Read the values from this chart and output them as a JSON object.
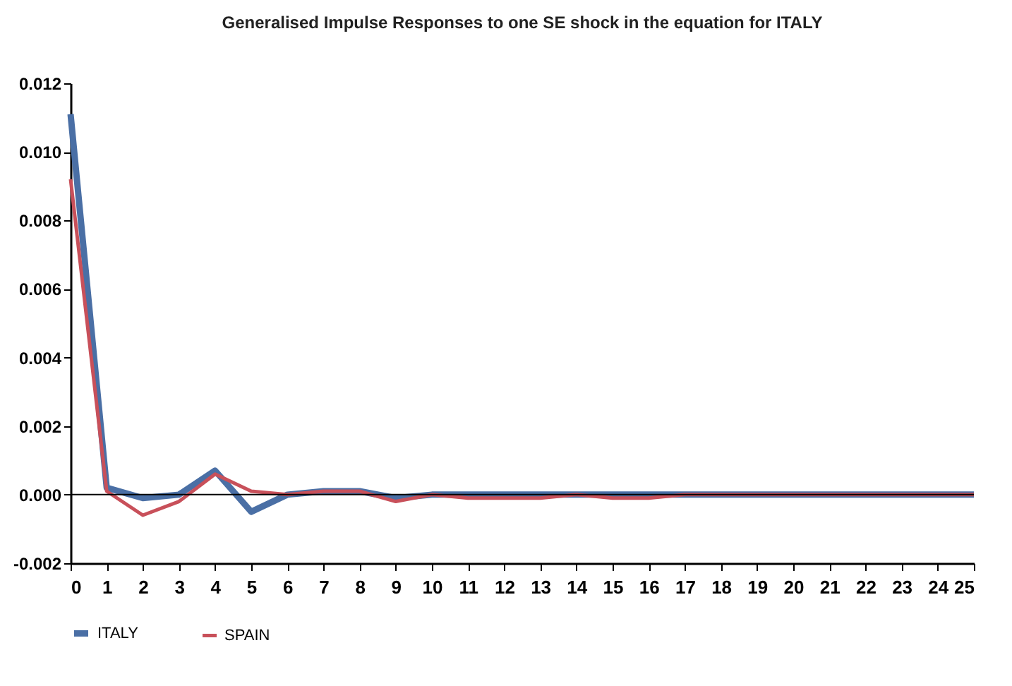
{
  "chart_data": {
    "type": "line",
    "title": "Generalised Impulse Responses to one SE shock in the equation for ITALY",
    "x": [
      0,
      1,
      2,
      3,
      4,
      5,
      6,
      7,
      8,
      9,
      10,
      11,
      12,
      13,
      14,
      15,
      16,
      17,
      18,
      19,
      20,
      21,
      22,
      23,
      24,
      25
    ],
    "series": [
      {
        "name": "ITALY",
        "color": "#4a6fa5",
        "values": [
          0.0111,
          0.0002,
          -0.0001,
          0.0,
          0.0007,
          -0.0005,
          0.0,
          0.0001,
          0.0001,
          -0.0001,
          0.0,
          0.0,
          0.0,
          0.0,
          0.0,
          0.0,
          0.0,
          0.0,
          0.0,
          0.0,
          0.0,
          0.0,
          0.0,
          0.0,
          0.0,
          0.0
        ]
      },
      {
        "name": "SPAIN",
        "color": "#c8505a",
        "values": [
          0.0092,
          0.0001,
          -0.0006,
          -0.0002,
          0.0006,
          0.0001,
          0.0,
          0.0001,
          0.0001,
          -0.0002,
          0.0,
          -0.0001,
          -0.0001,
          -0.0001,
          0.0,
          -0.0001,
          -0.0001,
          0.0,
          0.0,
          0.0,
          0.0,
          0.0,
          0.0,
          0.0,
          0.0,
          0.0
        ]
      }
    ],
    "xlim": [
      0,
      25
    ],
    "xticks": [
      0,
      1,
      2,
      3,
      4,
      5,
      6,
      7,
      8,
      9,
      10,
      11,
      12,
      13,
      14,
      15,
      16,
      17,
      18,
      19,
      20,
      21,
      22,
      23,
      24,
      25
    ],
    "ylim": [
      -0.002,
      0.012
    ],
    "yticks": [
      {
        "value": -0.002,
        "label": "-0.002"
      },
      {
        "value": 0,
        "label": "0.000"
      },
      {
        "value": 0.002,
        "label": "0.002"
      },
      {
        "value": 0.004,
        "label": "0.004"
      },
      {
        "value": 0.006,
        "label": "0.006"
      },
      {
        "value": 0.008,
        "label": "0.008"
      },
      {
        "value": 0.01,
        "label": "0.010"
      },
      {
        "value": 0.012,
        "label": "0.012"
      }
    ],
    "ref_lines": [
      {
        "axis": "y",
        "value": 0,
        "color": "#000000"
      }
    ],
    "grid": false,
    "legend": "bottom",
    "marker": "none",
    "line_style": "solid"
  }
}
